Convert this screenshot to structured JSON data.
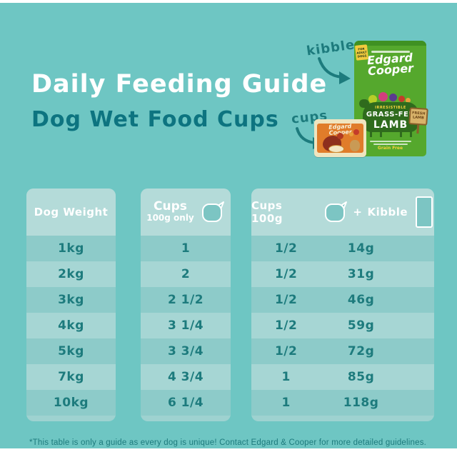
{
  "page": {
    "title": "Daily Feeding Guide",
    "subtitle": "Dog Wet Food Cups",
    "footnote": "*This table is only a guide as every dog is unique! Contact Edgard & Cooper for more detailed guidelines."
  },
  "annotations": {
    "kibbles_label": "kibbles",
    "cups_label": "cups"
  },
  "products": {
    "bag": {
      "brand_line1": "Edgard",
      "brand_line2": "Cooper",
      "badge": "IRRESISTIBLE",
      "variety_line1": "GRASS-FED",
      "variety_line2": "LAMB",
      "grain_free": "Grain Free",
      "ribbon_line1": "FOR",
      "ribbon_line2": "ADULT",
      "ribbon_line3": "DOGS",
      "sign_line1": "FRESH",
      "sign_line2": "LAMB"
    },
    "cup": {
      "brand_line1": "Edgard",
      "brand_line2": "Cooper"
    }
  },
  "tables": {
    "weight_header": "Dog Weight",
    "cups_only_header_line1": "Cups",
    "cups_only_header_line2": "100g only",
    "combo_header_cups": "Cups 100g",
    "combo_plus": "+",
    "combo_header_kibble": "Kibble",
    "rows": [
      {
        "weight": "1kg",
        "cups_only": "1",
        "combo_cups": "1/2",
        "kibble": "14g"
      },
      {
        "weight": "2kg",
        "cups_only": "2",
        "combo_cups": "1/2",
        "kibble": "31g"
      },
      {
        "weight": "3kg",
        "cups_only": "2 1/2",
        "combo_cups": "1/2",
        "kibble": "46g"
      },
      {
        "weight": "4kg",
        "cups_only": "3 1/4",
        "combo_cups": "1/2",
        "kibble": "59g"
      },
      {
        "weight": "5kg",
        "cups_only": "3 3/4",
        "combo_cups": "1/2",
        "kibble": "72g"
      },
      {
        "weight": "7kg",
        "cups_only": "4 3/4",
        "combo_cups": "1",
        "kibble": "85g"
      },
      {
        "weight": "10kg",
        "cups_only": "6 1/4",
        "combo_cups": "1",
        "kibble": "118g"
      }
    ]
  },
  "icons": {
    "cups_header_icon": "wet-food-cup-icon",
    "kibble_header_icon": "kibble-bag-icon"
  },
  "colors": {
    "teal_bg": "#6ec6c3",
    "panel_header": "#b4dbd9",
    "row_light": "#a6d6d4",
    "row_dark": "#8dcbc9",
    "panel_band": "#9ed2d0",
    "ink": "#1d7b7d",
    "subtitle_teal": "#0d7480",
    "white": "#ffffff",
    "bag_green": "#55a82d",
    "cup_orange": "#e07c2a",
    "ribbon_yellow": "#f2cb3d"
  },
  "chart_data": [
    {
      "type": "table",
      "title": "Cups 100g only",
      "columns": [
        "Dog Weight",
        "Cups 100g only"
      ],
      "rows": [
        [
          "1kg",
          "1"
        ],
        [
          "2kg",
          "2"
        ],
        [
          "3kg",
          "2 1/2"
        ],
        [
          "4kg",
          "3 1/4"
        ],
        [
          "5kg",
          "3 3/4"
        ],
        [
          "7kg",
          "4 3/4"
        ],
        [
          "10kg",
          "6 1/4"
        ]
      ]
    },
    {
      "type": "table",
      "title": "Cups 100g + Kibble",
      "columns": [
        "Dog Weight",
        "Cups 100g",
        "Kibble"
      ],
      "rows": [
        [
          "1kg",
          "1/2",
          "14g"
        ],
        [
          "2kg",
          "1/2",
          "31g"
        ],
        [
          "3kg",
          "1/2",
          "46g"
        ],
        [
          "4kg",
          "1/2",
          "59g"
        ],
        [
          "5kg",
          "1/2",
          "72g"
        ],
        [
          "7kg",
          "1",
          "85g"
        ],
        [
          "10kg",
          "1",
          "118g"
        ]
      ]
    }
  ]
}
